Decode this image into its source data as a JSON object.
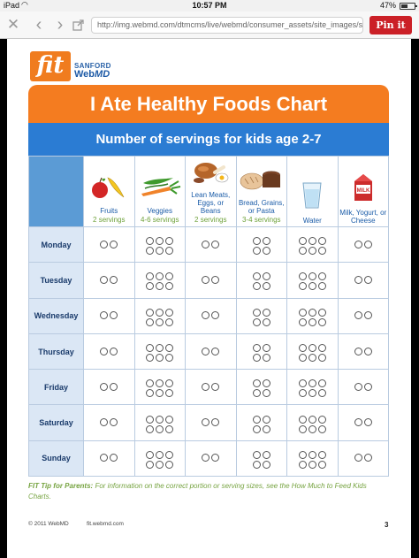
{
  "status_bar": {
    "carrier": "iPad",
    "time": "10:57 PM",
    "battery_pct": "47%"
  },
  "browser": {
    "url": "http://img.webmd.com/dtmcms/live/webmd/consumer_assets/site_images/spon...",
    "pin_label": "Pin it"
  },
  "logo": {
    "fit": "fit",
    "sanford": "SANFORD",
    "webmd_a": "Web",
    "webmd_b": "MD"
  },
  "chart": {
    "title": "I Ate Healthy Foods Chart",
    "subtitle": "Number of servings for kids age 2-7",
    "foods": [
      {
        "icon": "fruits-icon",
        "name": "Fruits",
        "servings": "2 servings",
        "count": 2
      },
      {
        "icon": "veggies-icon",
        "name": "Veggies",
        "servings": "4-6 servings",
        "count": 6
      },
      {
        "icon": "meat-icon",
        "name": "Lean Meats, Eggs, or Beans",
        "servings": "2 servings",
        "count": 2
      },
      {
        "icon": "bread-icon",
        "name": "Bread, Grains, or Pasta",
        "servings": "3-4 servings",
        "count": 4
      },
      {
        "icon": "water-icon",
        "name": "Water",
        "servings": "",
        "count": 6
      },
      {
        "icon": "milk-icon",
        "name": "Milk, Yogurt, or Cheese",
        "servings": "",
        "count": 2
      }
    ],
    "days": [
      "Monday",
      "Tuesday",
      "Wednesday",
      "Thursday",
      "Friday",
      "Saturday",
      "Sunday"
    ]
  },
  "tip": {
    "label": "FIT Tip for Parents:",
    "text": "For information on the correct portion or serving sizes, see the How Much to Feed Kids Charts."
  },
  "footer": {
    "copyright": "© 2011 WebMD",
    "site": "fit.webmd.com",
    "page": "3"
  },
  "colors": {
    "orange": "#f47c20",
    "blue": "#2b7cd3",
    "pinterest": "#cb2027",
    "tip_green": "#76a340"
  }
}
